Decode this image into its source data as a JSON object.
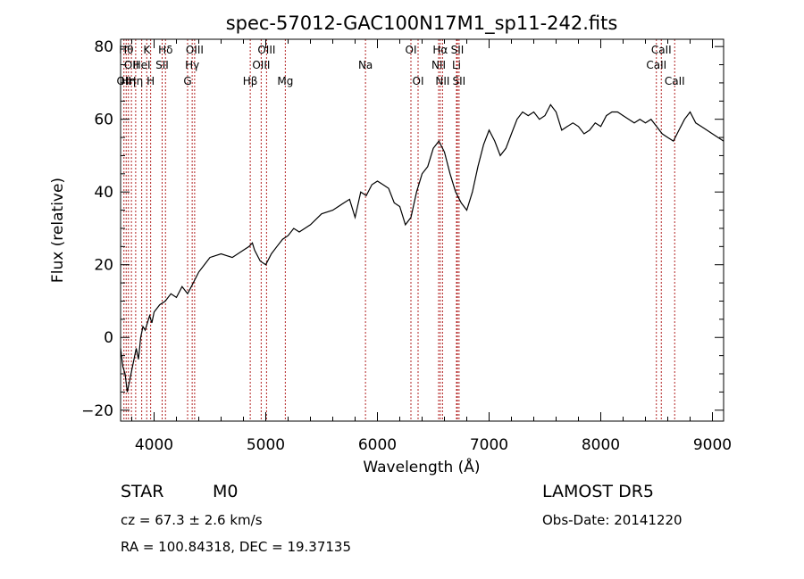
{
  "window_title": "spec-57012-GAC100N17M1_sp11-242.fits",
  "info": {
    "star_class": "STAR",
    "subclass": "M0",
    "velocity": "cz = 67.3 ± 2.6 km/s",
    "coords": "RA = 100.84318, DEC =  19.37135",
    "survey": "LAMOST DR5",
    "obs_date": "Obs-Date: 20141220"
  },
  "chart_data": {
    "type": "line",
    "title": "spec-57012-GAC100N17M1_sp11-242.fits",
    "xlabel": "Wavelength (Å)",
    "ylabel": "Flux (relative)",
    "xlim": [
      3700,
      9100
    ],
    "ylim": [
      -23,
      82
    ],
    "xticks": [
      4000,
      5000,
      6000,
      7000,
      8000,
      9000
    ],
    "yticks": [
      -20,
      0,
      20,
      40,
      60,
      80
    ],
    "grid": false,
    "line_color": "#000000",
    "marker_color": "#b22222",
    "series": [
      {
        "x": [
          3700,
          3720,
          3740,
          3760,
          3780,
          3800,
          3820,
          3840,
          3860,
          3880,
          3900,
          3920,
          3940,
          3960,
          3980,
          4000,
          4050,
          4100,
          4150,
          4200,
          4250,
          4300,
          4350,
          4400,
          4450,
          4500,
          4600,
          4700,
          4800,
          4850,
          4880,
          4900,
          4950,
          5000,
          5050,
          5100,
          5150,
          5200,
          5250,
          5300,
          5400,
          5500,
          5600,
          5700,
          5750,
          5800,
          5850,
          5900,
          5950,
          6000,
          6050,
          6100,
          6150,
          6200,
          6250,
          6300,
          6350,
          6400,
          6450,
          6500,
          6550,
          6600,
          6650,
          6700,
          6750,
          6800,
          6850,
          6900,
          6950,
          7000,
          7050,
          7100,
          7150,
          7200,
          7250,
          7300,
          7350,
          7400,
          7450,
          7500,
          7550,
          7600,
          7650,
          7700,
          7750,
          7800,
          7850,
          7900,
          7950,
          8000,
          8050,
          8100,
          8150,
          8200,
          8250,
          8300,
          8350,
          8400,
          8450,
          8500,
          8550,
          8600,
          8650,
          8700,
          8750,
          8800,
          8850,
          8900,
          8950,
          9000,
          9050,
          9100
        ],
        "y": [
          -3,
          -8,
          -10,
          -15,
          -12,
          -9,
          -6,
          -3,
          -6,
          0,
          3,
          2,
          4,
          6,
          4,
          7,
          9,
          10,
          12,
          11,
          14,
          12,
          15,
          18,
          20,
          22,
          23,
          22,
          24,
          25,
          26,
          24,
          21,
          20,
          23,
          25,
          27,
          28,
          30,
          29,
          31,
          34,
          35,
          37,
          38,
          33,
          40,
          39,
          42,
          43,
          42,
          41,
          37,
          36,
          31,
          33,
          40,
          45,
          47,
          52,
          54,
          51,
          45,
          40,
          37,
          35,
          40,
          47,
          53,
          57,
          54,
          50,
          52,
          56,
          60,
          62,
          61,
          62,
          60,
          61,
          64,
          62,
          57,
          58,
          59,
          58,
          56,
          57,
          59,
          58,
          61,
          62,
          62,
          61,
          60,
          59,
          60,
          59,
          60,
          58,
          56,
          55,
          54,
          57,
          60,
          62,
          59,
          58,
          57,
          56,
          55,
          54
        ]
      }
    ],
    "line_labels": [
      {
        "wl": 3730,
        "text": "OII",
        "row": 3
      },
      {
        "wl": 3750,
        "text": "Hθ",
        "row": 1
      },
      {
        "wl": 3770,
        "text": "Hη",
        "row": 3
      },
      {
        "wl": 3797,
        "text": "OII",
        "row": 2
      },
      {
        "wl": 3835,
        "text": "Hη",
        "row": 3
      },
      {
        "wl": 3889,
        "text": "HeI",
        "row": 2
      },
      {
        "wl": 3934,
        "text": "K",
        "row": 1
      },
      {
        "wl": 3969,
        "text": "H",
        "row": 3
      },
      {
        "wl": 4072,
        "text": "SII",
        "row": 2
      },
      {
        "wl": 4102,
        "text": "Hδ",
        "row": 1
      },
      {
        "wl": 4300,
        "text": "G",
        "row": 3
      },
      {
        "wl": 4341,
        "text": "Hγ",
        "row": 2
      },
      {
        "wl": 4363,
        "text": "OIII",
        "row": 1
      },
      {
        "wl": 4861,
        "text": "Hβ",
        "row": 3
      },
      {
        "wl": 4959,
        "text": "OIII",
        "row": 2
      },
      {
        "wl": 5007,
        "text": "OIII",
        "row": 1
      },
      {
        "wl": 5175,
        "text": "Mg",
        "row": 3
      },
      {
        "wl": 5893,
        "text": "Na",
        "row": 2
      },
      {
        "wl": 6300,
        "text": "OI",
        "row": 1
      },
      {
        "wl": 6364,
        "text": "OI",
        "row": 3
      },
      {
        "wl": 6548,
        "text": "NII",
        "row": 2
      },
      {
        "wl": 6563,
        "text": "Hα",
        "row": 1
      },
      {
        "wl": 6583,
        "text": "NII",
        "row": 3
      },
      {
        "wl": 6708,
        "text": "Li",
        "row": 2
      },
      {
        "wl": 6716,
        "text": "SII",
        "row": 1
      },
      {
        "wl": 6731,
        "text": "SII",
        "row": 3
      },
      {
        "wl": 8498,
        "text": "CaII",
        "row": 2
      },
      {
        "wl": 8542,
        "text": "CaII",
        "row": 1
      },
      {
        "wl": 8662,
        "text": "CaII",
        "row": 3
      }
    ]
  }
}
